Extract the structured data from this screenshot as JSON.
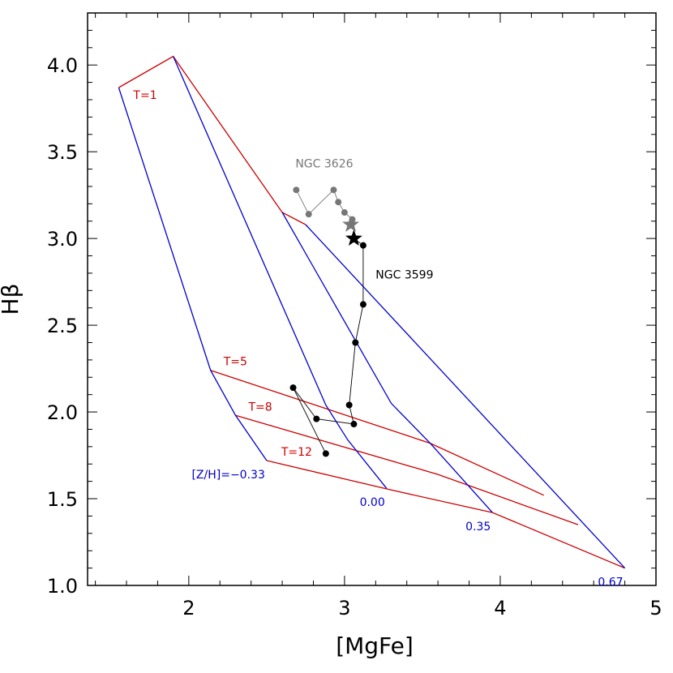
{
  "chart_data": {
    "type": "line",
    "xlabel": "[MgFe]",
    "ylabel": "Hβ",
    "xlim": [
      1.35,
      5.0
    ],
    "ylim": [
      1.0,
      4.3
    ],
    "grid": false,
    "x_ticks": [
      2,
      3,
      4,
      5
    ],
    "y_ticks": [
      1.0,
      1.5,
      2.0,
      2.5,
      3.0,
      3.5,
      4.0
    ],
    "x_tick_labels": [
      "2",
      "3",
      "4",
      "5"
    ],
    "y_tick_labels": [
      "1.0",
      "1.5",
      "2.0",
      "2.5",
      "3.0",
      "3.5",
      "4.0"
    ],
    "colors": {
      "age": "#cc0000",
      "metal": "#0000cc",
      "ngc3599": "#000000",
      "ngc3626": "#777777"
    },
    "age_lines": [
      {
        "label": "T=1",
        "points": [
          [
            1.55,
            3.87
          ],
          [
            1.9,
            4.05
          ],
          [
            2.6,
            3.15
          ],
          [
            2.75,
            3.08
          ]
        ]
      },
      {
        "label": "T=5",
        "points": [
          [
            2.14,
            2.24
          ],
          [
            3.55,
            1.82
          ],
          [
            4.28,
            1.52
          ]
        ]
      },
      {
        "label": "T=8",
        "points": [
          [
            2.3,
            1.98
          ],
          [
            3.6,
            1.64
          ],
          [
            4.5,
            1.35
          ]
        ]
      },
      {
        "label": "T=12",
        "points": [
          [
            2.5,
            1.72
          ],
          [
            3.3,
            1.55
          ],
          [
            3.95,
            1.42
          ],
          [
            4.8,
            1.1
          ]
        ]
      }
    ],
    "metal_lines": [
      {
        "label": "[Z/H]=−0.33",
        "points": [
          [
            1.55,
            3.87
          ],
          [
            2.14,
            2.24
          ],
          [
            2.3,
            1.98
          ],
          [
            2.5,
            1.72
          ]
        ]
      },
      {
        "label": "0.00",
        "points": [
          [
            1.9,
            4.05
          ],
          [
            2.88,
            2.04
          ],
          [
            3.02,
            1.84
          ],
          [
            3.27,
            1.56
          ]
        ]
      },
      {
        "label": "0.35",
        "points": [
          [
            2.6,
            3.15
          ],
          [
            3.3,
            2.05
          ],
          [
            3.55,
            1.82
          ],
          [
            3.95,
            1.42
          ]
        ]
      },
      {
        "label": "0.67",
        "points": [
          [
            2.75,
            3.08
          ],
          [
            4.8,
            1.1
          ]
        ]
      }
    ],
    "series": [
      {
        "name": "NGC 3599",
        "points": [
          [
            2.67,
            2.14
          ],
          [
            2.82,
            1.96
          ],
          [
            3.06,
            1.93
          ],
          [
            3.03,
            2.04
          ],
          [
            3.07,
            2.4
          ],
          [
            3.12,
            2.62
          ],
          [
            3.12,
            2.96
          ]
        ],
        "extra_point": [
          2.88,
          1.76
        ],
        "star": [
          3.06,
          3.0
        ]
      },
      {
        "name": "NGC 3626",
        "points": [
          [
            2.69,
            3.28
          ],
          [
            2.77,
            3.14
          ],
          [
            2.93,
            3.28
          ],
          [
            2.96,
            3.21
          ],
          [
            3.0,
            3.15
          ],
          [
            3.05,
            3.11
          ]
        ],
        "star": [
          3.04,
          3.08
        ]
      }
    ]
  }
}
